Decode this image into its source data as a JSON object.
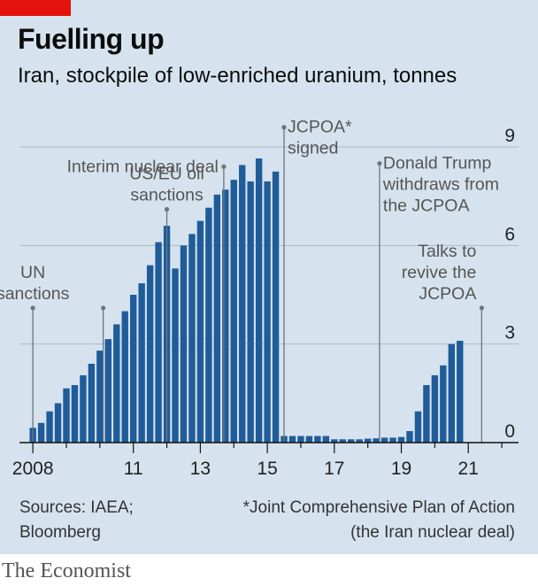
{
  "header": {
    "title": "Fuelling up",
    "subtitle": "Iran, stockpile of low-enriched uranium, tonnes"
  },
  "footer": {
    "source_line1": "Sources: IAEA;",
    "source_line2": "Bloomberg",
    "note_line1": "*Joint Comprehensive Plan of Action",
    "note_line2": "(the Iran nuclear deal)",
    "brand": "The Economist"
  },
  "colors": {
    "bar": "#1f5c99",
    "panel": "#d6e3ee",
    "grid": "#aab8c6",
    "accent": "#e3120b",
    "annotation": "#6b7580"
  },
  "chart_data": {
    "type": "bar",
    "xlabel": "",
    "ylabel": "",
    "ylim": [
      0,
      9
    ],
    "yticks": [
      0,
      3,
      6,
      9
    ],
    "yaxis_side": "right",
    "xlim": [
      2007.6,
      2022.5
    ],
    "xticks": [
      {
        "value": 2008,
        "label": "2008"
      },
      {
        "value": 2011,
        "label": "11"
      },
      {
        "value": 2013,
        "label": "13"
      },
      {
        "value": 2015,
        "label": "15"
      },
      {
        "value": 2017,
        "label": "17"
      },
      {
        "value": 2019,
        "label": "19"
      },
      {
        "value": 2021,
        "label": "21"
      }
    ],
    "grid": true,
    "x": [
      2008.0,
      2008.25,
      2008.5,
      2008.75,
      2009.0,
      2009.25,
      2009.5,
      2009.75,
      2010.0,
      2010.25,
      2010.5,
      2010.75,
      2011.0,
      2011.25,
      2011.5,
      2011.75,
      2012.0,
      2012.25,
      2012.5,
      2012.75,
      2013.0,
      2013.25,
      2013.5,
      2013.75,
      2014.0,
      2014.25,
      2014.5,
      2014.75,
      2015.0,
      2015.25,
      2015.5,
      2015.75,
      2016.0,
      2016.25,
      2016.5,
      2016.75,
      2017.0,
      2017.25,
      2017.5,
      2017.75,
      2018.0,
      2018.25,
      2018.5,
      2018.75,
      2019.0,
      2019.25,
      2019.5,
      2019.75,
      2020.0,
      2020.25,
      2020.5,
      2020.75
    ],
    "values": [
      0.45,
      0.6,
      0.95,
      1.2,
      1.65,
      1.75,
      2.05,
      2.4,
      2.8,
      3.15,
      3.6,
      4.0,
      4.5,
      4.85,
      5.4,
      6.1,
      6.6,
      5.3,
      6.0,
      6.35,
      6.75,
      7.15,
      7.55,
      7.7,
      8.0,
      8.45,
      7.95,
      8.65,
      7.95,
      8.25,
      0.2,
      0.2,
      0.2,
      0.2,
      0.2,
      0.2,
      0.1,
      0.1,
      0.1,
      0.1,
      0.12,
      0.13,
      0.15,
      0.15,
      0.17,
      0.35,
      0.95,
      1.75,
      2.05,
      2.35,
      3.0,
      3.1
    ],
    "annotations": [
      {
        "x": 2008.0,
        "lines": [
          "UN",
          "sanctions"
        ],
        "align": "middle",
        "level": 4.1
      },
      {
        "x": 2010.1,
        "lines": [],
        "align": "middle",
        "level": 4.1
      },
      {
        "x": 2012.0,
        "lines": [
          "US/EU oil",
          "sanctions"
        ],
        "align": "middle",
        "level": 7.1
      },
      {
        "x": 2013.7,
        "lines": [
          "Interim nuclear deal"
        ],
        "align": "end",
        "level": 8.4
      },
      {
        "x": 2015.5,
        "lines": [
          "JCPOA*",
          "signed"
        ],
        "align": "start",
        "level": 9.6
      },
      {
        "x": 2018.35,
        "lines": [
          "Donald Trump",
          "withdraws from",
          "the JCPOA"
        ],
        "align": "start",
        "level": 8.5
      },
      {
        "x": 2021.4,
        "lines": [
          "Talks to",
          "revive the",
          "JCPOA"
        ],
        "align": "end",
        "level": 4.1
      }
    ]
  }
}
